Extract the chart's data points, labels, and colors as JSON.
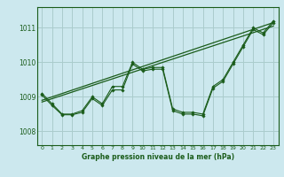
{
  "title": "",
  "xlabel": "Graphe pression niveau de la mer (hPa)",
  "ylabel": "",
  "bg_color": "#cce8ee",
  "grid_color": "#aacccc",
  "line_color": "#1a5c1a",
  "marker_color": "#1a5c1a",
  "xlim": [
    -0.5,
    23.5
  ],
  "ylim": [
    1007.6,
    1011.6
  ],
  "yticks": [
    1008,
    1009,
    1010,
    1011
  ],
  "xticks": [
    0,
    1,
    2,
    3,
    4,
    5,
    6,
    7,
    8,
    9,
    10,
    11,
    12,
    13,
    14,
    15,
    16,
    17,
    18,
    19,
    20,
    21,
    22,
    23
  ],
  "series": [
    {
      "x": [
        0,
        1,
        2,
        3,
        4,
        5,
        6,
        7,
        8,
        9,
        10,
        11,
        12,
        13,
        14,
        15,
        16,
        17,
        18,
        19,
        20,
        21,
        22,
        23
      ],
      "y": [
        1009.1,
        1008.8,
        1008.5,
        1008.5,
        1008.6,
        1009.0,
        1008.8,
        1009.3,
        1009.3,
        1010.0,
        1009.8,
        1009.85,
        1009.85,
        1008.65,
        1008.55,
        1008.55,
        1008.5,
        1009.3,
        1009.5,
        1010.0,
        1010.5,
        1011.0,
        1010.85,
        1011.2
      ],
      "no_marker": false
    },
    {
      "x": [
        0,
        1,
        2,
        3,
        4,
        5,
        6,
        7,
        8,
        9,
        10,
        11,
        12,
        13,
        14,
        15,
        16,
        17,
        18,
        19,
        20,
        21,
        22,
        23
      ],
      "y": [
        1009.05,
        1008.75,
        1008.48,
        1008.48,
        1008.55,
        1008.95,
        1008.75,
        1009.2,
        1009.2,
        1009.95,
        1009.75,
        1009.8,
        1009.8,
        1008.6,
        1008.5,
        1008.5,
        1008.45,
        1009.25,
        1009.45,
        1009.95,
        1010.45,
        1010.95,
        1010.8,
        1011.15
      ],
      "no_marker": false
    },
    {
      "x": [
        0,
        23
      ],
      "y": [
        1008.9,
        1011.15
      ],
      "no_marker": true
    },
    {
      "x": [
        0,
        23
      ],
      "y": [
        1008.85,
        1011.05
      ],
      "no_marker": true
    }
  ]
}
